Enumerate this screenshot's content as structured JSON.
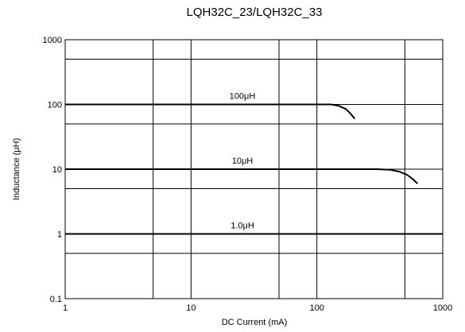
{
  "chart_data": {
    "type": "line",
    "title": "LQH32C_23/LQH32C_33",
    "xlabel": "DC Current (mA)",
    "ylabel": "Inductance (μH)",
    "x_scale": "log",
    "y_scale": "log",
    "xlim": [
      1,
      1000
    ],
    "ylim": [
      0.1,
      1000
    ],
    "x_ticks": [
      "1",
      "10",
      "100",
      "1000"
    ],
    "y_ticks": [
      "0.1",
      "1",
      "10",
      "100",
      "1000"
    ],
    "grid": true,
    "series": [
      {
        "name": "100μH",
        "x": [
          1,
          50,
          100,
          130,
          150,
          170,
          185,
          200
        ],
        "y": [
          100,
          100,
          100,
          100,
          95,
          85,
          72,
          60
        ]
      },
      {
        "name": "10μH",
        "x": [
          1,
          100,
          300,
          380,
          450,
          520,
          580,
          630
        ],
        "y": [
          10,
          10,
          10,
          9.8,
          9.2,
          8.2,
          7,
          6
        ]
      },
      {
        "name": "1.0μH",
        "x": [
          1,
          1000
        ],
        "y": [
          1,
          1
        ]
      }
    ]
  }
}
